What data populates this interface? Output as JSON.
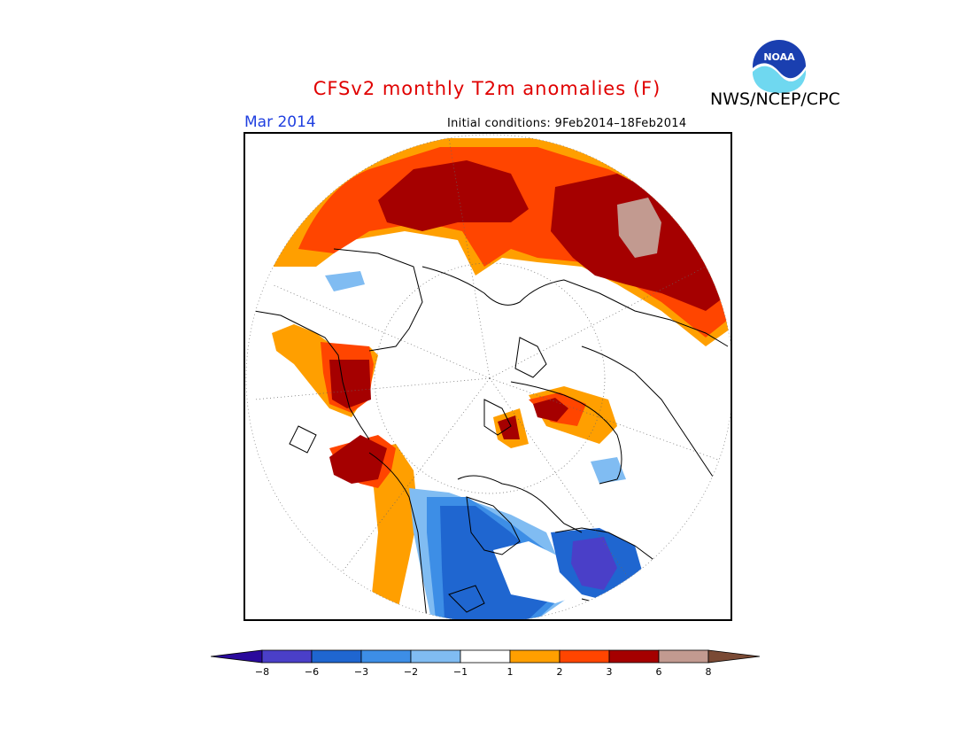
{
  "title": "CFSv2 monthly T2m anomalies (F)",
  "agency": "NWS/NCEP/CPC",
  "logo_text": "NOAA",
  "month": "Mar 2014",
  "initial_conditions": "Initial conditions: 9Feb2014–18Feb2014",
  "colorbar": {
    "colors": [
      "#2a0a9c",
      "#4a3fc8",
      "#1f66d0",
      "#3d8ee6",
      "#80bcf2",
      "#ffffff",
      "#ff9f00",
      "#ff4500",
      "#a50000",
      "#c29a90",
      "#7a4a35"
    ],
    "labels": [
      "−8",
      "−6",
      "−3",
      "−2",
      "−1",
      "1",
      "2",
      "3",
      "6",
      "8"
    ]
  },
  "colors": {
    "title": "#e00000",
    "month": "#1f3fe0"
  }
}
